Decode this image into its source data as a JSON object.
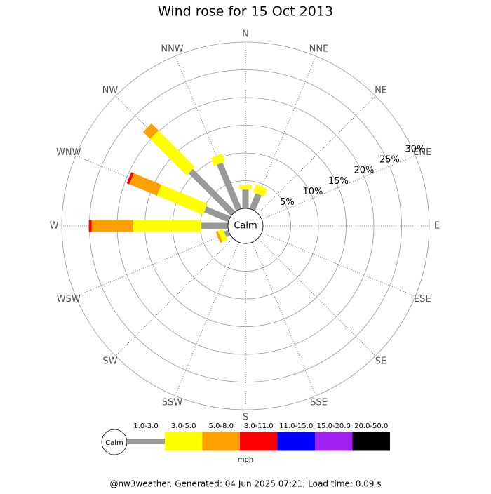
{
  "chart_data": {
    "type": "windrose",
    "title": "Wind rose for 15 Oct 2013",
    "categories": [
      "N",
      "NNE",
      "NE",
      "ENE",
      "E",
      "ESE",
      "SE",
      "SSE",
      "S",
      "SSW",
      "SW",
      "WSW",
      "W",
      "WNW",
      "NW",
      "NNW"
    ],
    "calm_label": "Calm",
    "unit": "mph",
    "footer": "@nw3weather. Generated: 04 Jun 2025 07:21; Load time: 0.09 s",
    "rlim": [
      0,
      30
    ],
    "rticks": [
      {
        "value": 5,
        "label": "5%"
      },
      {
        "value": 10,
        "label": "10%"
      },
      {
        "value": 15,
        "label": "15%"
      },
      {
        "value": 20,
        "label": "20%"
      },
      {
        "value": 25,
        "label": "25%"
      },
      {
        "value": 30,
        "label": "30%"
      }
    ],
    "series": [
      {
        "name": "1.0-3.0",
        "color": "#999999",
        "values": [
          3.4,
          3.0,
          0,
          0,
          0,
          0,
          0,
          0,
          0,
          0,
          0,
          0.8,
          4.8,
          4.7,
          10.8,
          9.0
        ]
      },
      {
        "name": "3.0-5.0",
        "color": "#ffff00",
        "values": [
          0.8,
          1.5,
          0,
          0,
          0,
          0,
          0,
          0,
          0,
          0,
          0,
          1.0,
          12.3,
          9.0,
          9.3,
          1.5
        ]
      },
      {
        "name": "5.0-8.0",
        "color": "#ff9f00",
        "values": [
          0,
          0,
          0,
          0,
          0,
          0,
          0,
          0,
          0,
          0,
          0,
          0.4,
          7.5,
          5.4,
          1.8,
          0
        ]
      },
      {
        "name": "8.0-11.0",
        "color": "#ff0000",
        "values": [
          0,
          0,
          0,
          0,
          0,
          0,
          0,
          0,
          0,
          0,
          0,
          0,
          0.5,
          0.5,
          0,
          0
        ]
      },
      {
        "name": "11.0-15.0",
        "color": "#0000ff",
        "values": [
          0,
          0,
          0,
          0,
          0,
          0,
          0,
          0,
          0,
          0,
          0,
          0,
          0,
          0,
          0,
          0
        ]
      },
      {
        "name": "15.0-20.0",
        "color": "#a020f0",
        "values": [
          0,
          0,
          0,
          0,
          0,
          0,
          0,
          0,
          0,
          0,
          0,
          0,
          0,
          0,
          0,
          0
        ]
      },
      {
        "name": "20.0-50.0",
        "color": "#000000",
        "values": [
          0,
          0,
          0,
          0,
          0,
          0,
          0,
          0,
          0,
          0,
          0,
          0,
          0,
          0,
          0,
          0
        ]
      }
    ]
  }
}
